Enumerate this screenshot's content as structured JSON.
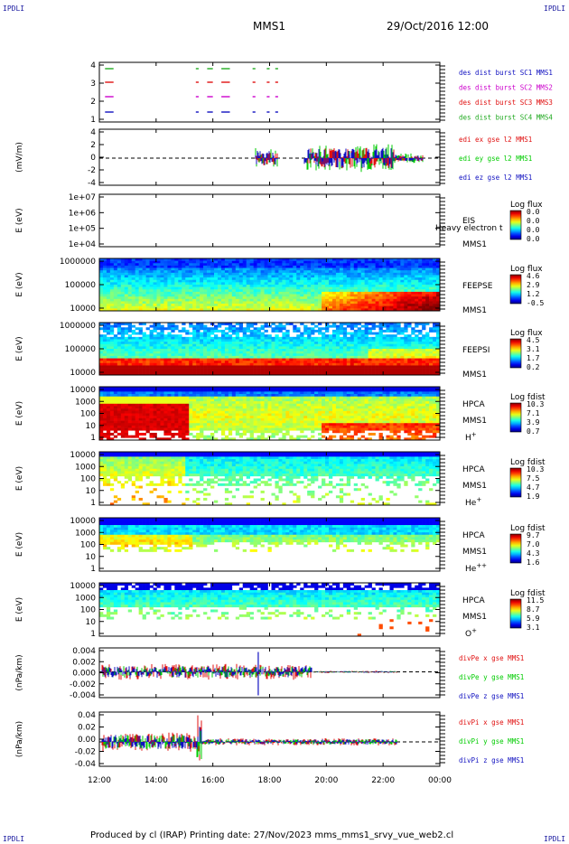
{
  "corner_labels": {
    "top_left": "IPDLI",
    "top_right": "IPDLI",
    "bottom_left": "IPDLI",
    "bottom_right": "IPDLI"
  },
  "header": {
    "title": "MMS1",
    "date": "29/Oct/2016 12:00"
  },
  "footer": {
    "text": "Produced by cl (IRAP)   Printing date: 27/Nov/2023   mms_mms1_srvy_vue_web2.cl"
  },
  "colors": {
    "red": "#e01010",
    "green": "#00cc00",
    "blue": "#1010c0",
    "magenta": "#cc00cc",
    "darkgreen": "#22aa22"
  },
  "chart_data": {
    "type": "heatmap",
    "x_time_range": [
      "12:00",
      "00:00"
    ],
    "x_ticks": [
      "12:00",
      "14:00",
      "16:00",
      "18:00",
      "20:00",
      "22:00",
      "00:00"
    ],
    "panels": [
      {
        "id": "burst",
        "kind": "line",
        "ylabel": "",
        "yticks": [
          "4",
          "3",
          "2",
          "1"
        ],
        "legend": [
          {
            "text": "des dist burst SC1 MMS1",
            "color": "#1010c0"
          },
          {
            "text": "des dist burst SC2 MMS2",
            "color": "#cc00cc"
          },
          {
            "text": "des dist burst SC3 MMS3",
            "color": "#e01010"
          },
          {
            "text": "des dist burst SC4 MMS4",
            "color": "#22aa22"
          }
        ],
        "series": [
          {
            "level": 4,
            "color": "#22aa22",
            "intervals": [
              [
                12.2,
                12.5
              ],
              [
                15.4,
                15.5
              ],
              [
                15.8,
                16.0
              ],
              [
                16.3,
                16.6
              ],
              [
                17.4,
                17.5
              ],
              [
                17.9,
                18.0
              ],
              [
                18.2,
                18.3
              ]
            ]
          },
          {
            "level": 3,
            "color": "#e01010",
            "intervals": [
              [
                12.2,
                12.5
              ],
              [
                15.4,
                15.5
              ],
              [
                15.8,
                16.0
              ],
              [
                16.3,
                16.6
              ],
              [
                17.4,
                17.5
              ],
              [
                17.9,
                18.0
              ],
              [
                18.2,
                18.3
              ]
            ]
          },
          {
            "level": 2,
            "color": "#cc00cc",
            "intervals": [
              [
                12.2,
                12.5
              ],
              [
                15.4,
                15.5
              ],
              [
                15.8,
                16.0
              ],
              [
                16.3,
                16.6
              ],
              [
                17.4,
                17.5
              ],
              [
                17.9,
                18.0
              ],
              [
                18.2,
                18.3
              ]
            ]
          },
          {
            "level": 1,
            "color": "#1010c0",
            "intervals": [
              [
                12.2,
                12.5
              ],
              [
                15.4,
                15.5
              ],
              [
                15.8,
                16.0
              ],
              [
                16.3,
                16.6
              ],
              [
                17.4,
                17.5
              ],
              [
                17.9,
                18.0
              ],
              [
                18.2,
                18.3
              ]
            ]
          }
        ]
      },
      {
        "id": "edi",
        "kind": "line",
        "ylabel": "(mV/m)",
        "yticks": [
          "4",
          "2",
          "0",
          "-2",
          "-4"
        ],
        "legend": [
          {
            "text": "edi ex gse l2 MMS1",
            "color": "#e01010"
          },
          {
            "text": "edi ey gse l2 MMS1",
            "color": "#00cc00"
          },
          {
            "text": "edi ez gse l2 MMS1",
            "color": "#1010c0"
          }
        ]
      },
      {
        "id": "eis",
        "kind": "empty",
        "ylabel": "E (eV)",
        "yticks": [
          "1e+07",
          "1e+06",
          "1e+05",
          "1e+04"
        ],
        "instrument": [
          "EIS",
          "MMS1"
        ],
        "overlay": "Heavy electron t",
        "colorbar": {
          "title": "Log flux",
          "values": [
            "0.0",
            "0.0",
            "0.0",
            "0.0"
          ]
        }
      },
      {
        "id": "feepse",
        "kind": "spectrogram",
        "ylabel": "E (eV)",
        "yticks": [
          "1000000",
          "100000",
          "10000"
        ],
        "instrument": [
          "FEEPSE",
          "MMS1"
        ],
        "colorbar": {
          "title": "Log flux",
          "values": [
            "4.6",
            "2.9",
            "1.2",
            "-0.5"
          ]
        }
      },
      {
        "id": "feepsi",
        "kind": "spectrogram",
        "ylabel": "E (eV)",
        "yticks": [
          "1000000",
          "100000",
          "10000"
        ],
        "instrument": [
          "FEEPSI",
          "MMS1"
        ],
        "colorbar": {
          "title": "Log flux",
          "values": [
            "4.5",
            "3.1",
            "1.7",
            "0.2"
          ]
        }
      },
      {
        "id": "hpca-h",
        "kind": "spectrogram",
        "ylabel": "E (eV)",
        "yticks": [
          "10000",
          "1000",
          "100",
          "10",
          "1"
        ],
        "instrument": [
          "HPCA",
          "MMS1",
          "H+"
        ],
        "colorbar": {
          "title": "Log fdist",
          "values": [
            "10.3",
            "7.1",
            "3.9",
            "0.7"
          ]
        }
      },
      {
        "id": "hpca-he",
        "kind": "spectrogram",
        "ylabel": "E (eV)",
        "yticks": [
          "10000",
          "1000",
          "100",
          "10",
          "1"
        ],
        "instrument": [
          "HPCA",
          "MMS1",
          "He+"
        ],
        "colorbar": {
          "title": "Log fdist",
          "values": [
            "10.3",
            "7.5",
            "4.7",
            "1.9"
          ]
        }
      },
      {
        "id": "hpca-hepp",
        "kind": "spectrogram",
        "ylabel": "E (eV)",
        "yticks": [
          "10000",
          "1000",
          "100",
          "10",
          "1"
        ],
        "instrument": [
          "HPCA",
          "MMS1",
          "He++"
        ],
        "colorbar": {
          "title": "Log fdist",
          "values": [
            "9.7",
            "7.0",
            "4.3",
            "1.6"
          ]
        }
      },
      {
        "id": "hpca-o",
        "kind": "spectrogram",
        "ylabel": "E (eV)",
        "yticks": [
          "10000",
          "1000",
          "100",
          "10",
          "1"
        ],
        "instrument": [
          "HPCA",
          "MMS1",
          "O+"
        ],
        "colorbar": {
          "title": "Log fdist",
          "values": [
            "11.5",
            "8.7",
            "5.9",
            "3.1"
          ]
        }
      },
      {
        "id": "divpe",
        "kind": "line",
        "ylabel": "(nPa/km)",
        "yticks": [
          "0.004",
          "0.002",
          "0.000",
          "-0.002",
          "-0.004"
        ],
        "legend": [
          {
            "text": "divPe x gse MMS1",
            "color": "#e01010"
          },
          {
            "text": "divPe y gse MMS1",
            "color": "#00cc00"
          },
          {
            "text": "divPe z gse MMS1",
            "color": "#1010c0"
          }
        ]
      },
      {
        "id": "divpi",
        "kind": "line",
        "ylabel": "(nPa/km)",
        "yticks": [
          "0.04",
          "0.02",
          "0.00",
          "-0.02",
          "-0.04"
        ],
        "legend": [
          {
            "text": "divPi x gse MMS1",
            "color": "#e01010"
          },
          {
            "text": "divPi y gse MMS1",
            "color": "#00cc00"
          },
          {
            "text": "divPi z gse MMS1",
            "color": "#1010c0"
          }
        ]
      }
    ]
  }
}
